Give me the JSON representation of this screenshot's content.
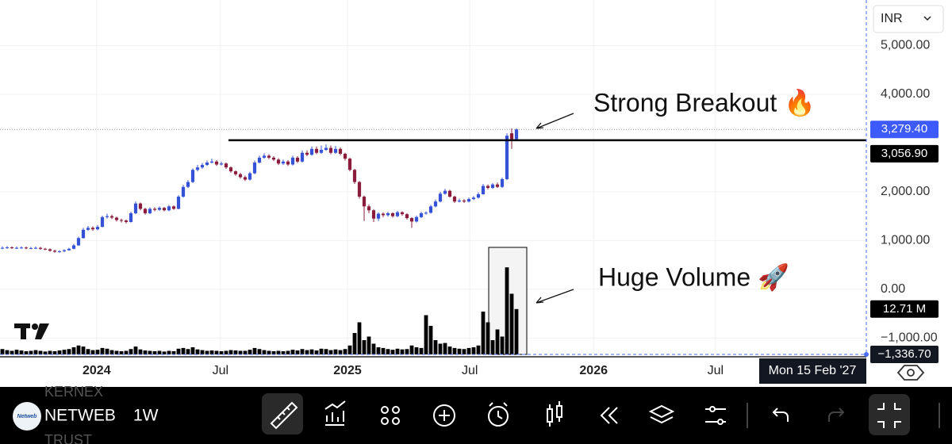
{
  "chart_data": {
    "type": "candlestick",
    "ui": {
      "currency": "INR",
      "ticker_above": "KERNEX",
      "symbol": "NETWEB",
      "ticker_below": "TRUST",
      "logo_text": "Netweb",
      "interval": "1W"
    },
    "annotations": [
      "Strong Breakout 🔥",
      "Huge Volume 🚀"
    ],
    "up_color": "#3551d6",
    "down_color": "#8a1c3c",
    "volume_color": "#000000",
    "xlim": [
      -0.5,
      181.5
    ],
    "xticks": [
      {
        "value": 19.8,
        "label": "2024"
      },
      {
        "value": 45.8,
        "label": "Jul"
      },
      {
        "value": 72.5,
        "label": "2025"
      },
      {
        "value": 98.2,
        "label": "Jul"
      },
      {
        "value": 124.2,
        "label": "2026"
      },
      {
        "value": 149.8,
        "label": "Jul"
      }
    ],
    "ylim": [
      -1336.7,
      5935
    ],
    "yticks": [
      {
        "value": 5000,
        "label": "5,000.00"
      },
      {
        "value": 4000,
        "label": "4,000.00"
      },
      {
        "value": 2000,
        "label": "2,000.00"
      },
      {
        "value": 1000,
        "label": "1,000.00"
      },
      {
        "value": 0,
        "label": "0.00"
      },
      {
        "value": -1000,
        "label": "−1,000.00"
      }
    ],
    "grid": true,
    "last_price": {
      "value": 3279.4,
      "label": "3,279.40",
      "color": "#3d5afe"
    },
    "hline": {
      "value": 3056.9,
      "label": "3,056.90"
    },
    "crosshair": {
      "price": {
        "value": -1336.7,
        "label": "−1,336.70"
      },
      "date": "Mon 15 Feb '27"
    },
    "open": [
      840,
      850,
      860,
      845,
      850,
      855,
      840,
      845,
      850,
      830,
      820,
      790,
      770,
      780,
      800,
      830,
      900,
      1050,
      1220,
      1260,
      1230,
      1280,
      1480,
      1500,
      1470,
      1420,
      1410,
      1380,
      1560,
      1760,
      1650,
      1560,
      1650,
      1630,
      1670,
      1620,
      1700,
      1650,
      1900,
      2100,
      2200,
      2450,
      2500,
      2550,
      2600,
      2620,
      2560,
      2580,
      2500,
      2420,
      2360,
      2300,
      2250,
      2380,
      2600,
      2700,
      2740,
      2700,
      2660,
      2580,
      2620,
      2560,
      2700,
      2620,
      2800,
      2760,
      2880,
      2800,
      2860,
      2900,
      2800,
      2880,
      2780,
      2680,
      2450,
      2200,
      1900,
      1700,
      1620,
      1450,
      1550,
      1520,
      1560,
      1500,
      1580,
      1540,
      1460,
      1390,
      1480,
      1560,
      1570,
      1700,
      1800,
      1960,
      2020,
      1900,
      1800,
      1820,
      1800,
      1850,
      1880,
      1950,
      2120,
      2080,
      2150,
      2100,
      2260,
      3200,
      3080
    ],
    "high": [
      880,
      885,
      880,
      875,
      880,
      875,
      870,
      875,
      870,
      850,
      840,
      810,
      800,
      820,
      850,
      930,
      1080,
      1260,
      1300,
      1290,
      1320,
      1510,
      1550,
      1530,
      1490,
      1450,
      1430,
      1590,
      1800,
      1780,
      1670,
      1680,
      1680,
      1700,
      1690,
      1730,
      1720,
      1930,
      2140,
      2240,
      2480,
      2550,
      2590,
      2640,
      2680,
      2650,
      2620,
      2600,
      2520,
      2440,
      2390,
      2330,
      2410,
      2640,
      2740,
      2790,
      2770,
      2730,
      2690,
      2660,
      2650,
      2740,
      2730,
      2850,
      2850,
      2930,
      2930,
      2950,
      2970,
      2950,
      2940,
      2910,
      2800,
      2700,
      2470,
      2220,
      1920,
      1740,
      1640,
      1580,
      1580,
      1590,
      1580,
      1610,
      1600,
      1560,
      1480,
      1510,
      1590,
      1600,
      1730,
      1840,
      2000,
      2060,
      2040,
      1920,
      1860,
      1850,
      1880,
      1910,
      1990,
      2160,
      2150,
      2180,
      2190,
      2290,
      3200,
      3300,
      3300
    ],
    "low": [
      820,
      830,
      825,
      825,
      830,
      820,
      820,
      825,
      810,
      800,
      770,
      750,
      750,
      760,
      790,
      820,
      890,
      1040,
      1200,
      1200,
      1210,
      1270,
      1450,
      1440,
      1390,
      1370,
      1350,
      1370,
      1540,
      1620,
      1530,
      1540,
      1600,
      1610,
      1600,
      1600,
      1630,
      1640,
      1880,
      2080,
      2180,
      2420,
      2470,
      2530,
      2580,
      2530,
      2540,
      2470,
      2390,
      2330,
      2270,
      2220,
      2230,
      2360,
      2580,
      2680,
      2670,
      2630,
      2550,
      2550,
      2530,
      2540,
      2590,
      2600,
      2730,
      2740,
      2770,
      2780,
      2840,
      2770,
      2780,
      2750,
      2640,
      2420,
      2160,
      1860,
      1400,
      1560,
      1380,
      1400,
      1480,
      1490,
      1470,
      1480,
      1510,
      1430,
      1260,
      1370,
      1460,
      1530,
      1550,
      1680,
      1780,
      1940,
      1880,
      1770,
      1780,
      1770,
      1780,
      1830,
      1860,
      1940,
      2050,
      2060,
      2080,
      2080,
      2240,
      2880,
      3050
    ],
    "close": [
      850,
      860,
      845,
      850,
      855,
      840,
      845,
      850,
      830,
      820,
      790,
      770,
      780,
      800,
      830,
      900,
      1050,
      1220,
      1260,
      1230,
      1280,
      1480,
      1500,
      1470,
      1420,
      1410,
      1380,
      1560,
      1760,
      1650,
      1560,
      1650,
      1630,
      1670,
      1620,
      1700,
      1650,
      1900,
      2100,
      2200,
      2450,
      2500,
      2550,
      2600,
      2620,
      2560,
      2580,
      2500,
      2420,
      2360,
      2300,
      2250,
      2380,
      2600,
      2700,
      2740,
      2700,
      2660,
      2580,
      2620,
      2560,
      2700,
      2620,
      2800,
      2760,
      2880,
      2800,
      2860,
      2900,
      2800,
      2880,
      2780,
      2680,
      2450,
      2200,
      1900,
      1700,
      1620,
      1450,
      1550,
      1520,
      1560,
      1500,
      1580,
      1540,
      1460,
      1390,
      1480,
      1560,
      1570,
      1700,
      1800,
      1960,
      2020,
      1900,
      1800,
      1820,
      1800,
      1850,
      1880,
      1950,
      2120,
      2080,
      2150,
      2100,
      2260,
      3150,
      3080,
      3279.4
    ],
    "volume": {
      "ylim": [
        0,
        28.5
      ],
      "last": {
        "value": 12.71,
        "label": "12.71 M"
      },
      "values": [
        1.5,
        1.2,
        1,
        1.3,
        1.1,
        0.9,
        1,
        1.2,
        1,
        0.8,
        1,
        0.9,
        1.1,
        1.3,
        1.5,
        2,
        2.5,
        2.2,
        1.5,
        1.2,
        1.3,
        1.8,
        1.6,
        1.2,
        1,
        0.9,
        1,
        1.5,
        2.2,
        1.4,
        1.1,
        1,
        0.9,
        1,
        0.8,
        1,
        0.9,
        1.6,
        1.8,
        1.5,
        2,
        1.4,
        1.2,
        1,
        1.1,
        1,
        0.9,
        1,
        1.2,
        1.1,
        1,
        1,
        1.3,
        1.8,
        1.5,
        1.2,
        1,
        0.9,
        1,
        0.9,
        1,
        1.3,
        1.1,
        1.5,
        1.2,
        1.4,
        1.1,
        1.6,
        1.5,
        1.2,
        1.4,
        1.2,
        1.5,
        2.5,
        6,
        9,
        4,
        5,
        3,
        2,
        1.8,
        1.5,
        1.3,
        1.6,
        1.4,
        1.5,
        2.5,
        2,
        1.8,
        11,
        8,
        4,
        3,
        3.2,
        2.2,
        1.8,
        1.6,
        1.5,
        1.8,
        2,
        2.5,
        12,
        9,
        4,
        7,
        5,
        24.4,
        17,
        12.71
      ]
    }
  }
}
